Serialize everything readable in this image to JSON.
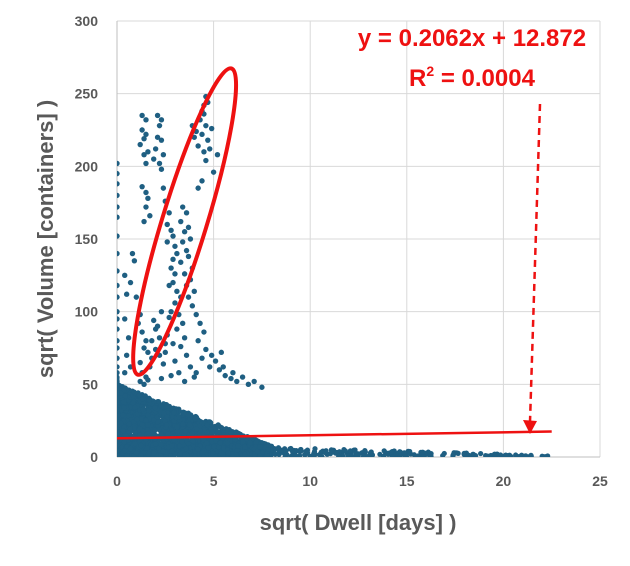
{
  "chart_data": {
    "type": "scatter",
    "title": "",
    "xlabel": "sqrt( Dwell [days] )",
    "ylabel": "sqrt( Volume [containers] )",
    "xlim": [
      0,
      25
    ],
    "ylim": [
      0,
      300
    ],
    "xticks": [
      "0",
      "5",
      "10",
      "15",
      "20",
      "25"
    ],
    "yticks": [
      "0",
      "50",
      "100",
      "150",
      "200",
      "250",
      "300"
    ],
    "grid": {
      "vertical": true,
      "horizontal": true
    },
    "legend": "none",
    "marker_color": "#1f5f82",
    "annotation_color": "#ee1111",
    "trendline": {
      "slope": 0.2062,
      "intercept": 12.872,
      "x_range": [
        0,
        22.5
      ]
    },
    "annotations": {
      "equation": "y = 0.2062x + 12.872",
      "r_squared_prefix": "R",
      "r_squared_exp": "2",
      "r_squared_value": " = 0.0004"
    },
    "highlight_ellipse": {
      "center": [
        3.5,
        162
      ],
      "x_semi_axis": 2.1,
      "y_semi_axis": 108,
      "rotation_note": "tilted along the high-volume streak"
    },
    "dense_cluster": {
      "x_range": [
        0,
        8
      ],
      "y_range": [
        0,
        50
      ]
    },
    "points": [
      [
        0,
        202
      ],
      [
        0,
        195
      ],
      [
        0,
        188
      ],
      [
        0,
        180
      ],
      [
        0,
        172
      ],
      [
        0,
        165
      ],
      [
        0,
        152
      ],
      [
        0,
        140
      ],
      [
        0,
        128
      ],
      [
        0,
        118
      ],
      [
        0,
        110
      ],
      [
        0,
        100
      ],
      [
        0,
        95
      ],
      [
        0,
        88
      ],
      [
        0,
        80
      ],
      [
        0,
        75
      ],
      [
        0,
        68
      ],
      [
        0,
        62
      ],
      [
        0,
        58
      ],
      [
        0,
        52
      ],
      [
        0.4,
        125
      ],
      [
        0.5,
        112
      ],
      [
        0.4,
        95
      ],
      [
        0.6,
        82
      ],
      [
        0.5,
        70
      ],
      [
        0.7,
        62
      ],
      [
        0.4,
        58
      ],
      [
        0.8,
        140
      ],
      [
        0.9,
        135
      ],
      [
        0.7,
        120
      ],
      [
        1.0,
        110
      ],
      [
        1.2,
        98
      ],
      [
        1.1,
        92
      ],
      [
        1.3,
        86
      ],
      [
        1.5,
        80
      ],
      [
        1.4,
        75
      ],
      [
        1.6,
        72
      ],
      [
        1.8,
        68
      ],
      [
        1.2,
        65
      ],
      [
        1.7,
        62
      ],
      [
        1.3,
        58
      ],
      [
        1.5,
        55
      ],
      [
        1.2,
        52
      ],
      [
        1.4,
        50
      ],
      [
        1.6,
        53
      ],
      [
        1.3,
        235
      ],
      [
        1.5,
        232
      ],
      [
        1.3,
        225
      ],
      [
        1.5,
        222
      ],
      [
        1.4,
        219
      ],
      [
        1.2,
        215
      ],
      [
        1.6,
        210
      ],
      [
        1.4,
        208
      ],
      [
        1.5,
        202
      ],
      [
        2.1,
        235
      ],
      [
        2.3,
        232
      ],
      [
        2.2,
        228
      ],
      [
        2.1,
        220
      ],
      [
        2.3,
        218
      ],
      [
        2.0,
        212
      ],
      [
        2.4,
        208
      ],
      [
        1.9,
        205
      ],
      [
        2.2,
        202
      ],
      [
        2.3,
        198
      ],
      [
        1.3,
        186
      ],
      [
        1.5,
        182
      ],
      [
        1.6,
        178
      ],
      [
        1.5,
        172
      ],
      [
        1.7,
        166
      ],
      [
        1.4,
        162
      ],
      [
        2.4,
        185
      ],
      [
        2.5,
        176
      ],
      [
        2.7,
        168
      ],
      [
        2.6,
        160
      ],
      [
        2.8,
        156
      ],
      [
        2.9,
        152
      ],
      [
        2.6,
        148
      ],
      [
        3.0,
        145
      ],
      [
        3.1,
        140
      ],
      [
        2.9,
        136
      ],
      [
        2.8,
        130
      ],
      [
        3.0,
        126
      ],
      [
        2.9,
        120
      ],
      [
        2.7,
        118
      ],
      [
        3.1,
        114
      ],
      [
        3.3,
        110
      ],
      [
        3.0,
        106
      ],
      [
        2.8,
        100
      ],
      [
        3.2,
        98
      ],
      [
        2.7,
        96
      ],
      [
        3.4,
        92
      ],
      [
        3.1,
        88
      ],
      [
        2.6,
        84
      ],
      [
        3.5,
        82
      ],
      [
        2.9,
        78
      ],
      [
        3.3,
        76
      ],
      [
        2.5,
        72
      ],
      [
        3.6,
        70
      ],
      [
        3.0,
        66
      ],
      [
        2.4,
        64
      ],
      [
        3.8,
        62
      ],
      [
        3.2,
        58
      ],
      [
        2.8,
        56
      ],
      [
        4.0,
        55
      ],
      [
        3.5,
        52
      ],
      [
        2.3,
        54
      ],
      [
        2.1,
        90
      ],
      [
        1.9,
        94
      ],
      [
        2.3,
        100
      ],
      [
        2.0,
        88
      ],
      [
        2.2,
        82
      ],
      [
        1.8,
        80
      ],
      [
        2.5,
        78
      ],
      [
        2.0,
        74
      ],
      [
        2.2,
        70
      ],
      [
        3.4,
        172
      ],
      [
        3.6,
        168
      ],
      [
        3.3,
        162
      ],
      [
        3.7,
        158
      ],
      [
        3.5,
        155
      ],
      [
        3.8,
        150
      ],
      [
        3.4,
        148
      ],
      [
        3.6,
        142
      ],
      [
        3.7,
        138
      ],
      [
        3.3,
        134
      ],
      [
        3.9,
        130
      ],
      [
        3.5,
        126
      ],
      [
        3.8,
        122
      ],
      [
        3.6,
        118
      ],
      [
        4.0,
        114
      ],
      [
        3.7,
        110
      ],
      [
        3.9,
        104
      ],
      [
        4.1,
        98
      ],
      [
        4.3,
        92
      ],
      [
        4.5,
        86
      ],
      [
        4.2,
        80
      ],
      [
        4.6,
        74
      ],
      [
        4.4,
        68
      ],
      [
        4.8,
        62
      ],
      [
        4.1,
        58
      ],
      [
        3.9,
        228
      ],
      [
        4.1,
        224
      ],
      [
        4.0,
        220
      ],
      [
        4.3,
        232
      ],
      [
        4.4,
        238
      ],
      [
        4.5,
        242
      ],
      [
        4.6,
        248
      ],
      [
        4.5,
        236
      ],
      [
        4.7,
        244
      ],
      [
        4.6,
        228
      ],
      [
        4.4,
        222
      ],
      [
        4.7,
        218
      ],
      [
        4.8,
        212
      ],
      [
        4.5,
        210
      ],
      [
        4.6,
        204
      ],
      [
        4.2,
        214
      ],
      [
        4.9,
        226
      ],
      [
        4.4,
        190
      ],
      [
        5.0,
        196
      ],
      [
        4.2,
        185
      ],
      [
        5.2,
        208
      ],
      [
        5.1,
        66
      ],
      [
        5.3,
        60
      ],
      [
        5.6,
        56
      ],
      [
        5.9,
        54
      ],
      [
        6.2,
        52
      ],
      [
        6.5,
        55
      ],
      [
        6.8,
        50
      ],
      [
        7.1,
        52
      ],
      [
        7.5,
        48
      ],
      [
        5.5,
        62
      ],
      [
        6.0,
        58
      ],
      [
        4.9,
        70
      ],
      [
        5.4,
        72
      ]
    ]
  }
}
